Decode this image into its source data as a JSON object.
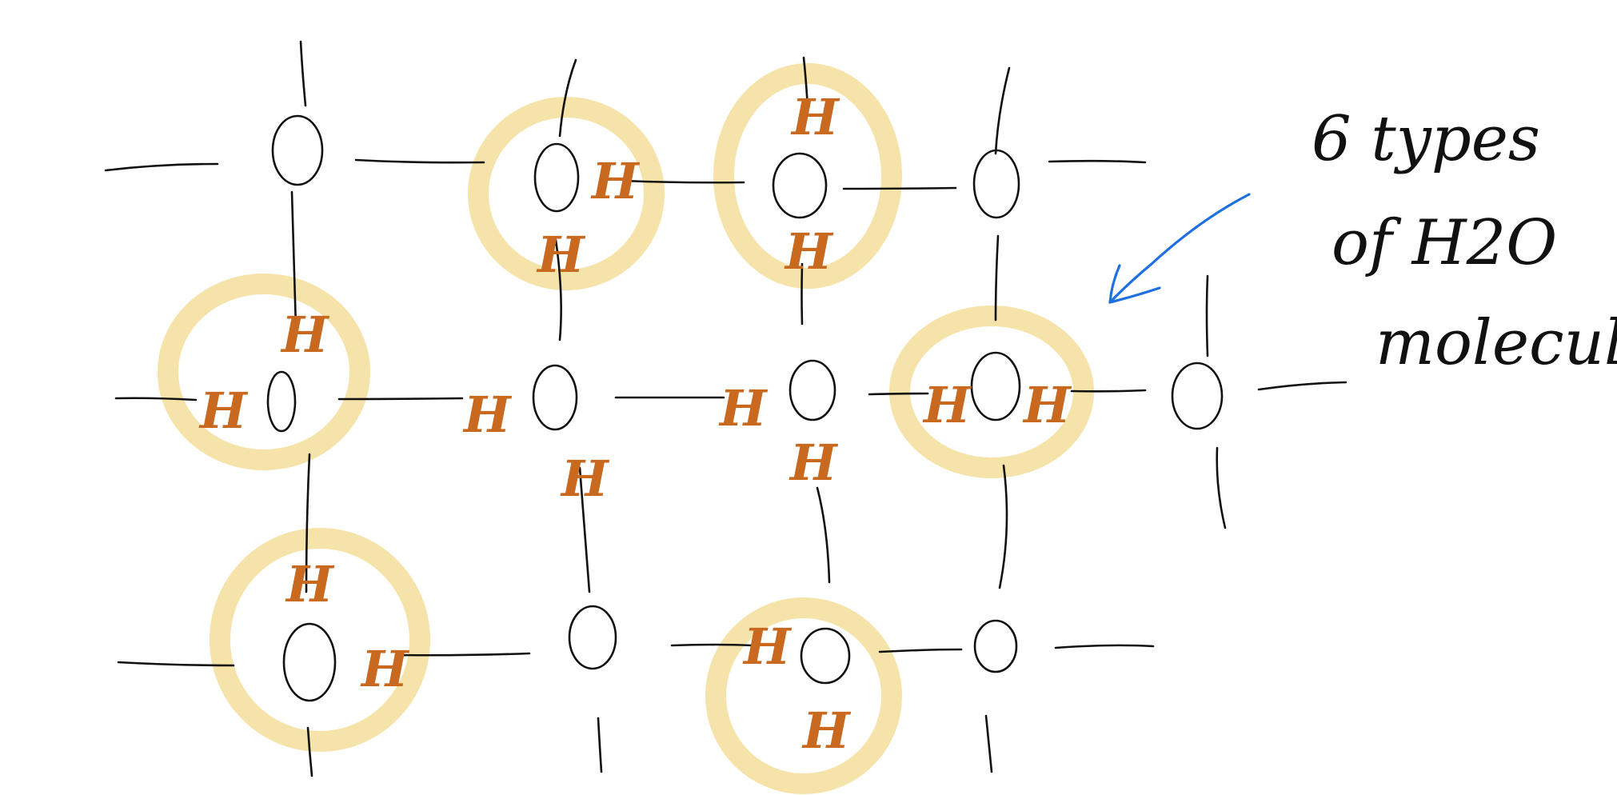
{
  "colors": {
    "bond": "#111111",
    "oxygen": "#111111",
    "hydrogen": "#C8691F",
    "highlight": "#F3DA8C",
    "arrow": "#1E6FE0",
    "note": "#111111"
  },
  "atoms": {
    "oxygen_label": "O",
    "hydrogen_label": "H"
  },
  "note": {
    "line1": "6 types",
    "line2": "of H2O",
    "line3": "molecules"
  }
}
